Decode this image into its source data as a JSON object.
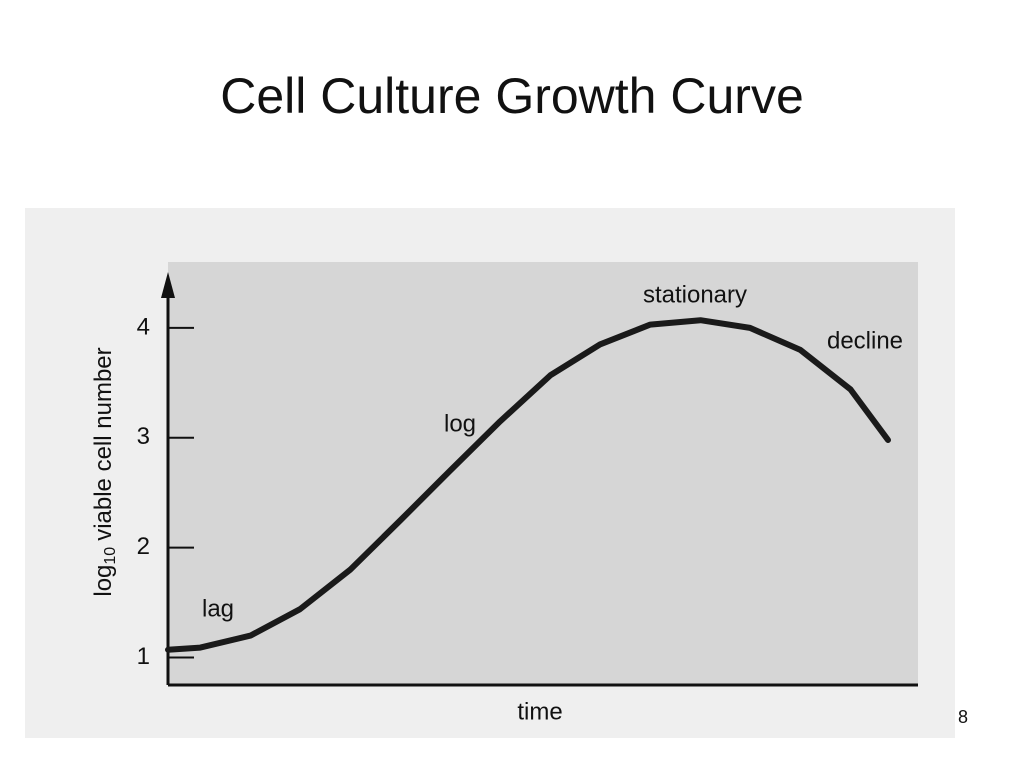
{
  "chart_data": {
    "type": "line",
    "title": "Cell Culture Growth Curve",
    "y_label": {
      "base": "log",
      "subscript": "10",
      "rest": "viable cell number"
    },
    "x_label": "time",
    "x": [
      0,
      4.3,
      11,
      17.6,
      24.3,
      31,
      37.6,
      44.3,
      51,
      57.6,
      64.3,
      71,
      77.6,
      84.3,
      91,
      96
    ],
    "series": [
      {
        "color": "#1a1a1a",
        "values": [
          1.07,
          1.09,
          1.2,
          1.44,
          1.8,
          2.25,
          2.7,
          3.15,
          3.57,
          3.85,
          4.03,
          4.07,
          4.0,
          3.8,
          3.44,
          2.98
        ]
      }
    ],
    "xlim": [
      0,
      100
    ],
    "ylim": [
      0.75,
      4.6
    ],
    "yticks": [
      1,
      2,
      3,
      4
    ],
    "annotations": [
      "lag",
      "log",
      "stationary",
      "decline"
    ],
    "slide_number": "8"
  }
}
